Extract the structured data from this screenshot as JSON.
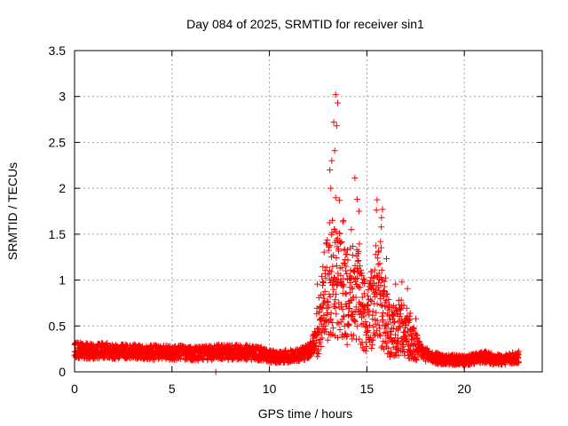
{
  "chart_data": {
    "type": "scatter",
    "title": "Day 084 of 2025, SRMTID for receiver sin1",
    "xlabel": "GPS time / hours",
    "ylabel": "SRMTID / TECUs",
    "xlim": [
      0,
      24
    ],
    "ylim": [
      0,
      3.5
    ],
    "x_ticks": [
      0,
      5,
      10,
      15,
      20
    ],
    "y_ticks": [
      0,
      0.5,
      1,
      1.5,
      2,
      2.5,
      3,
      3.5
    ],
    "x_tick_labels": [
      "0",
      "5",
      "10",
      "15",
      "20"
    ],
    "y_tick_labels": [
      "0",
      "0.5",
      "1",
      "1.5",
      "2",
      "2.5",
      "3",
      "3.5"
    ],
    "grid": true,
    "marker": "+",
    "color": "#ff0000",
    "series": [
      {
        "name": "SRMTID",
        "profile": [
          [
            0.0,
            0.24
          ],
          [
            0.5,
            0.23
          ],
          [
            1.0,
            0.22
          ],
          [
            1.5,
            0.24
          ],
          [
            2.0,
            0.22
          ],
          [
            2.5,
            0.22
          ],
          [
            3.0,
            0.23
          ],
          [
            3.5,
            0.21
          ],
          [
            4.0,
            0.21
          ],
          [
            4.5,
            0.22
          ],
          [
            5.0,
            0.2
          ],
          [
            5.5,
            0.21
          ],
          [
            6.0,
            0.2
          ],
          [
            6.5,
            0.2
          ],
          [
            7.0,
            0.21
          ],
          [
            7.5,
            0.22
          ],
          [
            8.0,
            0.21
          ],
          [
            8.5,
            0.22
          ],
          [
            9.0,
            0.21
          ],
          [
            9.5,
            0.2
          ],
          [
            10.0,
            0.17
          ],
          [
            10.5,
            0.16
          ],
          [
            11.0,
            0.17
          ],
          [
            11.5,
            0.18
          ],
          [
            12.0,
            0.22
          ],
          [
            12.3,
            0.32
          ],
          [
            12.6,
            0.55
          ],
          [
            12.9,
            0.9
          ],
          [
            13.2,
            1.05
          ],
          [
            13.5,
            0.95
          ],
          [
            13.8,
            0.85
          ],
          [
            14.1,
            0.8
          ],
          [
            14.4,
            0.9
          ],
          [
            14.7,
            0.75
          ],
          [
            15.0,
            0.5
          ],
          [
            15.3,
            0.75
          ],
          [
            15.6,
            0.85
          ],
          [
            15.9,
            0.6
          ],
          [
            16.2,
            0.45
          ],
          [
            16.5,
            0.45
          ],
          [
            16.8,
            0.5
          ],
          [
            17.1,
            0.42
          ],
          [
            17.4,
            0.3
          ],
          [
            17.7,
            0.24
          ],
          [
            18.0,
            0.19
          ],
          [
            18.5,
            0.15
          ],
          [
            19.0,
            0.13
          ],
          [
            19.5,
            0.13
          ],
          [
            20.0,
            0.12
          ],
          [
            20.5,
            0.14
          ],
          [
            21.0,
            0.16
          ],
          [
            21.5,
            0.14
          ],
          [
            22.0,
            0.13
          ],
          [
            22.5,
            0.15
          ],
          [
            22.8,
            0.16
          ]
        ],
        "notable_points": [
          [
            13.4,
            3.02
          ],
          [
            13.5,
            2.93
          ],
          [
            13.3,
            2.72
          ],
          [
            13.45,
            2.68
          ],
          [
            13.35,
            2.41
          ],
          [
            13.1,
            2.2
          ],
          [
            13.2,
            2.3
          ],
          [
            13.15,
            2.0
          ],
          [
            14.5,
            1.88
          ],
          [
            14.6,
            1.75
          ],
          [
            15.8,
            1.77
          ],
          [
            15.75,
            1.68
          ],
          [
            15.7,
            1.42
          ],
          [
            14.2,
            1.55
          ],
          [
            13.8,
            1.65
          ],
          [
            7.25,
            0.0
          ]
        ]
      }
    ]
  }
}
